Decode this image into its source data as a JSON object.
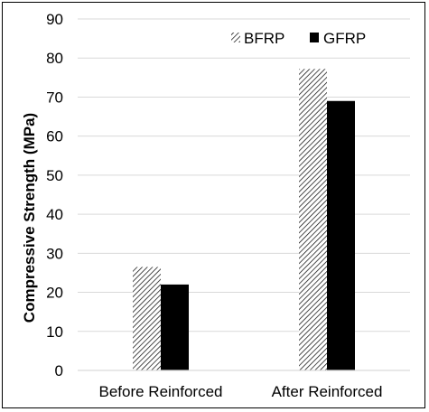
{
  "chart_data": {
    "type": "bar",
    "title": "",
    "xlabel": "",
    "ylabel": "Compressive Strength (MPa)",
    "categories": [
      "Before Reinforced",
      "After Reinforced"
    ],
    "series": [
      {
        "name": "BFRP",
        "values": [
          26.5,
          77.2
        ],
        "color": "#000000",
        "pattern": "diagonal-hatch"
      },
      {
        "name": "GFRP",
        "values": [
          22,
          69
        ],
        "color": "#000000",
        "pattern": "solid"
      }
    ],
    "ylim": [
      0,
      90
    ],
    "yticks": [
      0,
      10,
      20,
      30,
      40,
      50,
      60,
      70,
      80,
      90
    ],
    "grid": true,
    "legend": "top-right"
  }
}
